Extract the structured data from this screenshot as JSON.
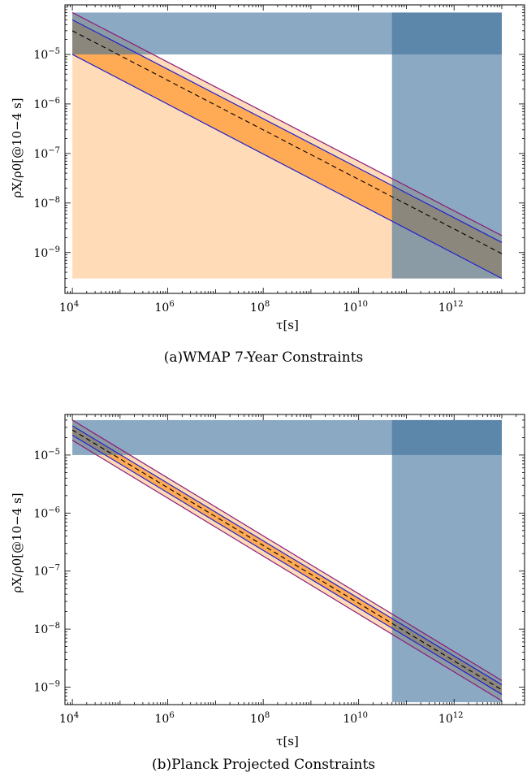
{
  "charts": [
    {
      "caption": "(a)WMAP 7-Year Constraints",
      "ylabel": "ρX/ρ0[@10−4 s]",
      "xlabel": "τ[s]"
    },
    {
      "caption": "(b)Planck Projected Constraints",
      "ylabel": "ρX/ρ0[@10−4 s]",
      "xlabel": "τ[s]"
    }
  ],
  "chart_data": [
    {
      "type": "area",
      "title": "(a)WMAP 7-Year Constraints",
      "xlabel": "τ[s]",
      "ylabel": "ρX/ρ0[@10−4 s]",
      "xscale": "log",
      "yscale": "log",
      "xlim": [
        7000,
        30000000000000.0
      ],
      "ylim": [
        1.5e-10,
        0.0001
      ],
      "x_ticks": [
        10000.0,
        1000000.0,
        100000000.0,
        10000000000.0,
        1000000000000.0
      ],
      "x_tick_labels": [
        "10^4",
        "10^6",
        "10^8",
        "10^10",
        "10^12"
      ],
      "y_ticks": [
        1e-09,
        1e-08,
        1e-07,
        1e-06,
        1e-05
      ],
      "y_tick_labels": [
        "10^-9",
        "10^-8",
        "10^-7",
        "10^-6",
        "10^-5"
      ],
      "grid": false,
      "x_range": [
        10000.0,
        10000000000000.0
      ],
      "series": [
        {
          "style": "dashed",
          "color": "#000000",
          "x": [
            10000.0,
            10000000000000.0
          ],
          "y": [
            3e-05,
            9.5e-10
          ]
        },
        {
          "style": "solid",
          "color": "#2222cc",
          "x": [
            10000.0,
            10000000000000.0
          ],
          "y": [
            5e-05,
            1.6e-09
          ]
        },
        {
          "style": "solid",
          "color": "#2222cc",
          "x": [
            10000.0,
            10000000000000.0
          ],
          "y": [
            1e-05,
            3e-10
          ]
        },
        {
          "style": "solid",
          "color": "#8a1a7a",
          "x": [
            10000.0,
            10000000000000.0
          ],
          "y": [
            7e-05,
            2.2e-09
          ]
        }
      ],
      "bands": [
        {
          "fill": "#ff9933",
          "opacity": 0.35,
          "lower_floor": 3e-10,
          "upper": [
            7e-05,
            2.2e-09
          ]
        },
        {
          "fill": "#ff9933",
          "opacity": 0.75,
          "lower": [
            1e-05,
            3e-10
          ],
          "upper": [
            5e-05,
            1.6e-09
          ]
        }
      ],
      "excluded_regions": [
        {
          "fill": "#3d6f9a",
          "opacity": 0.6,
          "x": [
            10000.0,
            10000000000000.0
          ],
          "y": [
            1e-05,
            7e-05
          ]
        },
        {
          "fill": "#3d6f9a",
          "opacity": 0.6,
          "x": [
            50000000000.0,
            10000000000000.0
          ],
          "y": [
            3e-10,
            7e-05
          ]
        }
      ]
    },
    {
      "type": "area",
      "title": "(b)Planck Projected Constraints",
      "xlabel": "τ[s]",
      "ylabel": "ρX/ρ0[@10−4 s]",
      "xscale": "log",
      "yscale": "log",
      "xlim": [
        7000,
        30000000000000.0
      ],
      "ylim": [
        5e-10,
        5e-05
      ],
      "x_ticks": [
        10000.0,
        1000000.0,
        100000000.0,
        10000000000.0,
        1000000000000.0
      ],
      "x_tick_labels": [
        "10^4",
        "10^6",
        "10^8",
        "10^10",
        "10^12"
      ],
      "y_ticks": [
        1e-09,
        1e-08,
        1e-07,
        1e-06,
        1e-05
      ],
      "y_tick_labels": [
        "10^-9",
        "10^-8",
        "10^-7",
        "10^-6",
        "10^-5"
      ],
      "grid": false,
      "x_range": [
        10000.0,
        10000000000000.0
      ],
      "series": [
        {
          "style": "dashed",
          "color": "#000000",
          "x": [
            10000.0,
            10000000000000.0
          ],
          "y": [
            2.7e-05,
            9e-10
          ]
        },
        {
          "style": "solid",
          "color": "#2222cc",
          "x": [
            10000.0,
            10000000000000.0
          ],
          "y": [
            3.2e-05,
            1.1e-09
          ]
        },
        {
          "style": "solid",
          "color": "#2222cc",
          "x": [
            10000.0,
            10000000000000.0
          ],
          "y": [
            2.2e-05,
            7.5e-10
          ]
        },
        {
          "style": "solid",
          "color": "#8a1a7a",
          "x": [
            10000.0,
            10000000000000.0
          ],
          "y": [
            4e-05,
            1.3e-09
          ]
        },
        {
          "style": "solid",
          "color": "#8a1a7a",
          "x": [
            10000.0,
            10000000000000.0
          ],
          "y": [
            1.8e-05,
            5.8e-10
          ]
        }
      ],
      "bands": [
        {
          "fill": "#ff9933",
          "opacity": 0.35,
          "lower": [
            1.8e-05,
            5.8e-10
          ],
          "upper": [
            4e-05,
            1.3e-09
          ]
        },
        {
          "fill": "#ff9933",
          "opacity": 0.75,
          "lower": [
            2.2e-05,
            7.5e-10
          ],
          "upper": [
            3.2e-05,
            1.1e-09
          ]
        }
      ],
      "excluded_regions": [
        {
          "fill": "#3d6f9a",
          "opacity": 0.6,
          "x": [
            10000.0,
            10000000000000.0
          ],
          "y": [
            1e-05,
            4e-05
          ]
        },
        {
          "fill": "#3d6f9a",
          "opacity": 0.6,
          "x": [
            50000000000.0,
            10000000000000.0
          ],
          "y": [
            5.5e-10,
            4e-05
          ]
        }
      ]
    }
  ]
}
